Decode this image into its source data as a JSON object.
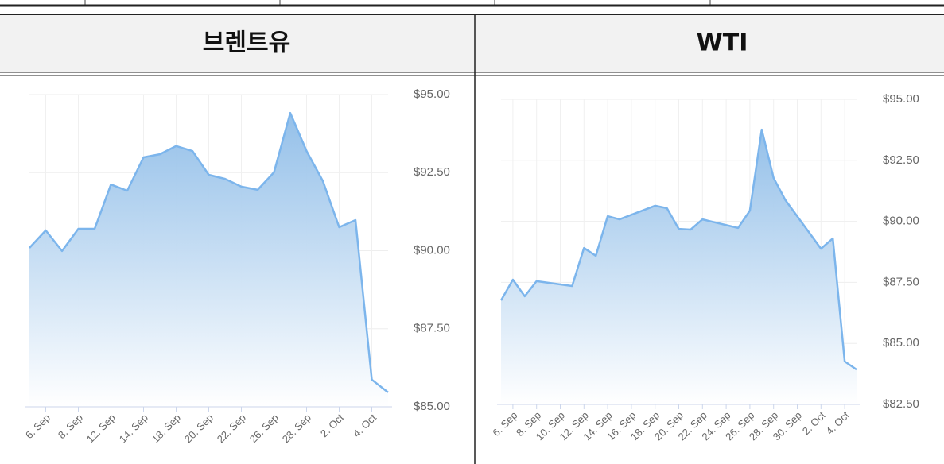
{
  "chart_data": [
    {
      "type": "area",
      "title": "브렌트유",
      "color": "#7cb5ec",
      "categories": [
        null,
        "6. Sep",
        null,
        "8. Sep",
        null,
        "12. Sep",
        null,
        "14. Sep",
        null,
        "18. Sep",
        null,
        "20. Sep",
        null,
        "22. Sep",
        null,
        "26. Sep",
        null,
        "28. Sep",
        null,
        "2. Oct",
        null,
        "4. Oct",
        null
      ],
      "values": [
        90.09,
        90.65,
        89.99,
        90.7,
        90.7,
        92.12,
        91.92,
        92.99,
        93.09,
        93.35,
        93.19,
        92.43,
        92.3,
        92.05,
        91.95,
        92.51,
        94.41,
        93.19,
        92.23,
        90.75,
        90.98,
        85.87,
        85.46
      ],
      "ylim": [
        85,
        95
      ],
      "yticks": [
        {
          "value": 85,
          "label": "$85.00"
        },
        {
          "value": 87.5,
          "label": "$87.50"
        },
        {
          "value": 90,
          "label": "$90.00"
        },
        {
          "value": 92.5,
          "label": "$92.50"
        },
        {
          "value": 95,
          "label": "$95.00"
        }
      ],
      "grid": true
    },
    {
      "type": "area",
      "title": "WTI",
      "color": "#7cb5ec",
      "categories": [
        null,
        "6. Sep",
        null,
        "8. Sep",
        null,
        "10. Sep",
        null,
        "12. Sep",
        null,
        "14. Sep",
        null,
        "16. Sep",
        null,
        "18. Sep",
        null,
        "20. Sep",
        null,
        "22. Sep",
        null,
        "24. Sep",
        null,
        "26. Sep",
        null,
        "28. Sep",
        null,
        "30. Sep",
        null,
        "2. Oct",
        null,
        "4. Oct",
        null
      ],
      "values": [
        86.76,
        87.61,
        86.93,
        87.55,
        null,
        null,
        87.35,
        88.91,
        88.59,
        90.21,
        90.08,
        null,
        null,
        90.64,
        90.54,
        89.69,
        89.66,
        90.08,
        null,
        null,
        89.73,
        90.44,
        93.76,
        91.78,
        90.87,
        null,
        null,
        88.88,
        89.3,
        84.26,
        83.93
      ],
      "ylim": [
        82.5,
        95
      ],
      "yticks": [
        {
          "value": 82.5,
          "label": "$82.50"
        },
        {
          "value": 85,
          "label": "$85.00"
        },
        {
          "value": 87.5,
          "label": "$87.50"
        },
        {
          "value": 90,
          "label": "$90.00"
        },
        {
          "value": 92.5,
          "label": "$92.50"
        },
        {
          "value": 95,
          "label": "$95.00"
        }
      ],
      "grid": true
    }
  ]
}
